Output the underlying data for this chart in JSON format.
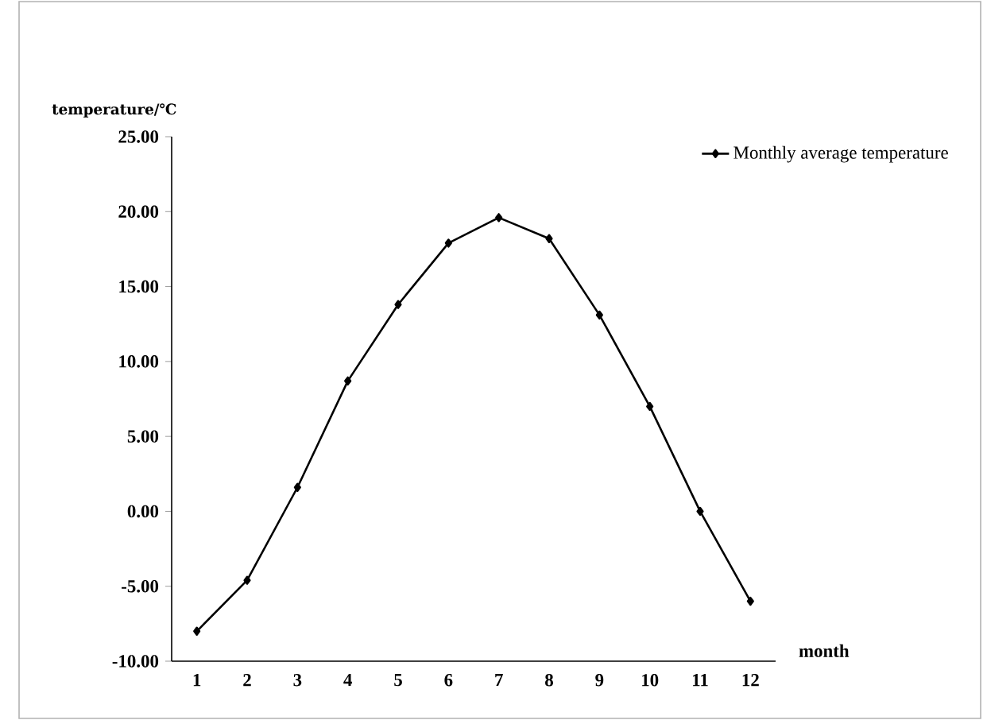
{
  "chart_data": {
    "type": "line",
    "xlabel": "month",
    "ylabel": "temperature/℃",
    "categories": [
      "1",
      "2",
      "3",
      "4",
      "5",
      "6",
      "7",
      "8",
      "9",
      "10",
      "11",
      "12"
    ],
    "series": [
      {
        "name": "Monthly average temperature",
        "color": "#000000",
        "values": [
          -8.0,
          -4.6,
          1.6,
          8.7,
          13.8,
          17.9,
          19.6,
          18.2,
          13.1,
          7.0,
          0.0,
          -6.0
        ]
      }
    ],
    "ylim": [
      -10,
      25
    ],
    "yticks": [
      {
        "value": -10,
        "label": "-10.00"
      },
      {
        "value": -5,
        "label": "-5.00"
      },
      {
        "value": 0,
        "label": "0.00"
      },
      {
        "value": 5,
        "label": "5.00"
      },
      {
        "value": 10,
        "label": "10.00"
      },
      {
        "value": 15,
        "label": "15.00"
      },
      {
        "value": 20,
        "label": "20.00"
      },
      {
        "value": 25,
        "label": "25.00"
      }
    ],
    "legend": "top right",
    "marker": "diamond",
    "line_style": "solid"
  }
}
